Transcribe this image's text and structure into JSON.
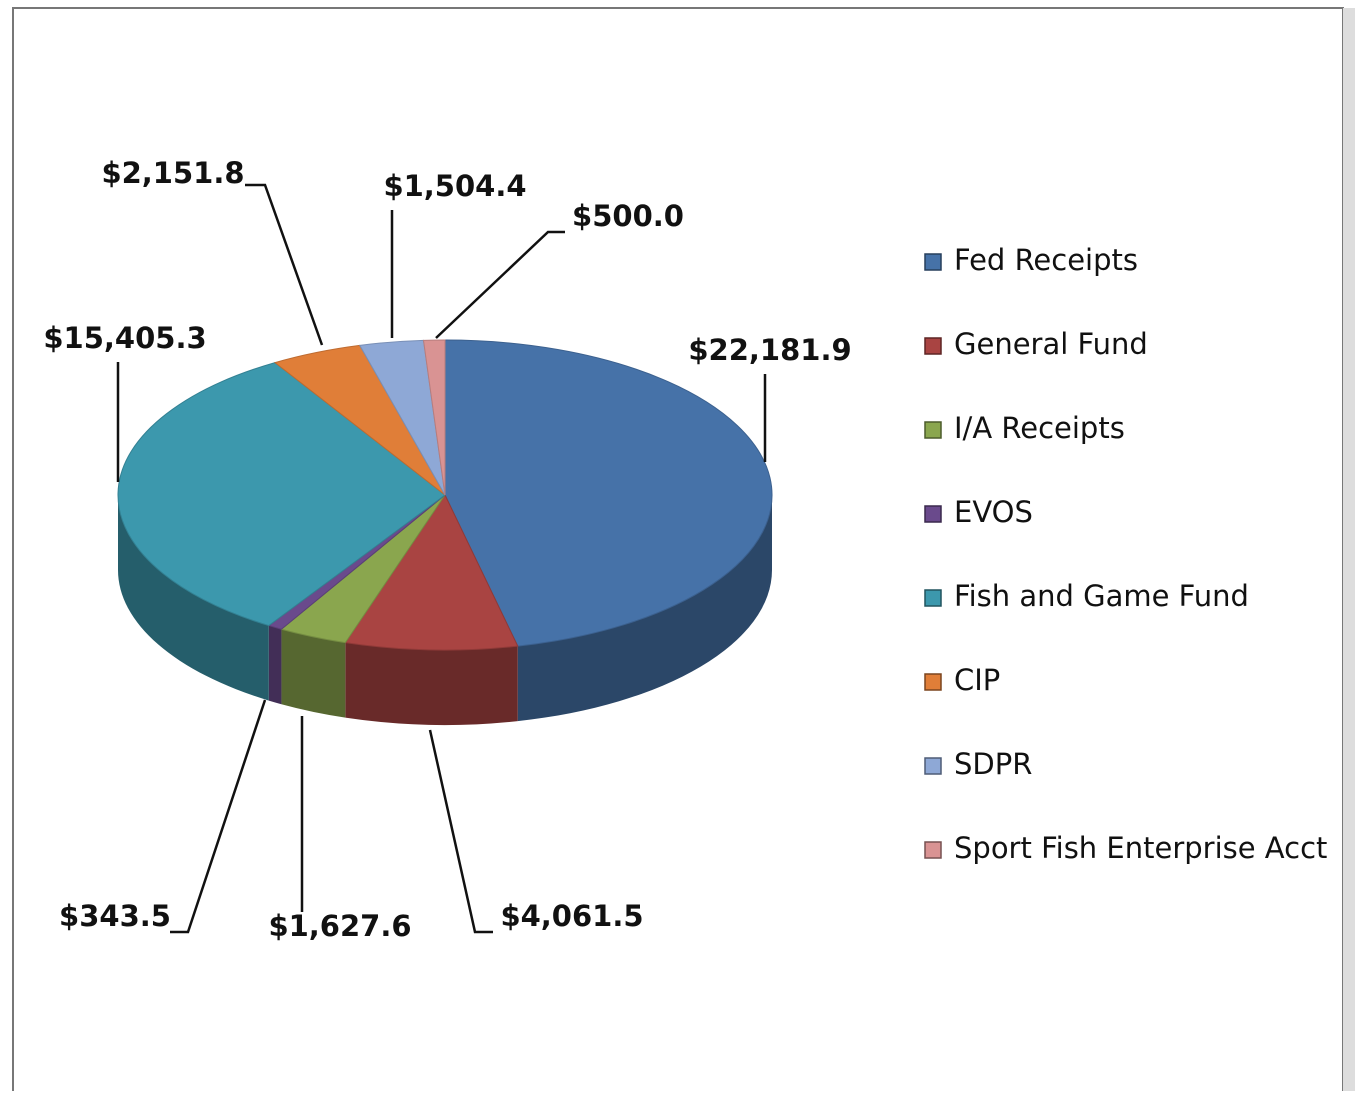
{
  "chart_data": {
    "type": "pie3d",
    "categories": [
      "Fed Receipts",
      "General Fund",
      "I/A Receipts",
      "EVOS",
      "Fish and Game Fund",
      "CIP",
      "SDPR",
      "Sport Fish Enterprise Acct"
    ],
    "values": [
      22181.9,
      4061.5,
      1627.6,
      343.5,
      15405.3,
      2151.8,
      1504.4,
      500.0
    ],
    "value_labels": [
      "$22,181.9",
      "$4,061.5",
      "$1,627.6",
      "$343.5",
      "$15,405.3",
      "$2,151.8",
      "$1,504.4",
      "$500.0"
    ],
    "colors": [
      "#4672a8",
      "#a94442",
      "#8aa64e",
      "#6a4a8c",
      "#3c98ad",
      "#e07e38",
      "#8ea8d6",
      "#d99393"
    ],
    "legend": "right"
  }
}
